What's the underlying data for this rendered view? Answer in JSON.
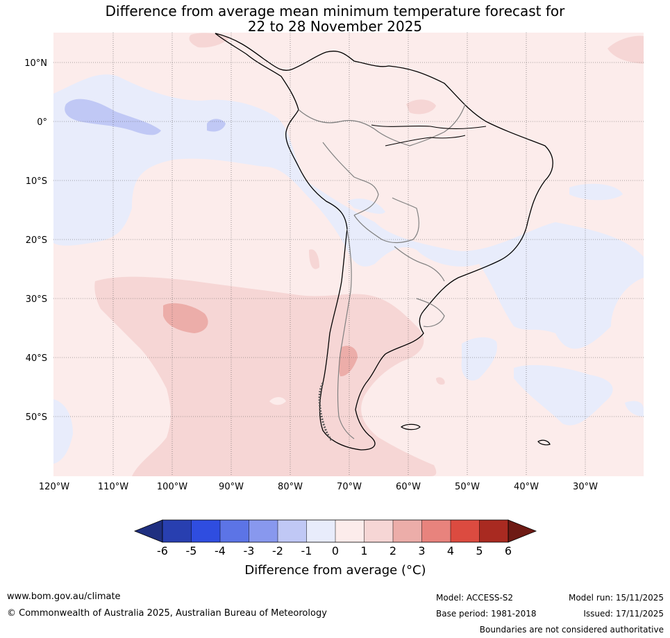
{
  "title": {
    "line1": "Difference from average mean minimum temperature forecast for",
    "line2": "22 to 28 November 2025"
  },
  "map": {
    "lat_labels": [
      "10°N",
      "0°",
      "10°S",
      "20°S",
      "30°S",
      "40°S",
      "50°S"
    ],
    "lon_labels": [
      "120°W",
      "110°W",
      "100°W",
      "90°W",
      "80°W",
      "70°W",
      "60°W",
      "50°W",
      "40°W",
      "30°W"
    ],
    "palette": {
      "neg6": "#1f2f80",
      "neg5": "#283fb0",
      "neg4": "#2f4de0",
      "neg3": "#5c74e6",
      "neg2": "#8898ee",
      "neg1": "#c0c8f5",
      "neg0": "#e8ecfb",
      "pos0": "#fceceb",
      "pos1": "#f6d6d5",
      "pos2": "#ecada9",
      "pos3": "#e8837d",
      "pos4": "#dc4b40",
      "pos5": "#a92a21",
      "pos6": "#6e1a14"
    }
  },
  "colorbar": {
    "ticks": [
      "-6",
      "-5",
      "-4",
      "-3",
      "-2",
      "-1",
      "0",
      "1",
      "2",
      "3",
      "4",
      "5",
      "6"
    ],
    "label": "Difference from average (°C)"
  },
  "footer": {
    "website": "www.bom.gov.au/climate",
    "copyright": "© Commonwealth of Australia 2025, Australian Bureau of Meteorology",
    "model": "Model: ACCESS-S2",
    "model_run": "Model run: 15/11/2025",
    "base_period": "Base period: 1981-2018",
    "issued": "Issued: 17/11/2025",
    "disclaimer": "Boundaries are not considered authoritative"
  }
}
